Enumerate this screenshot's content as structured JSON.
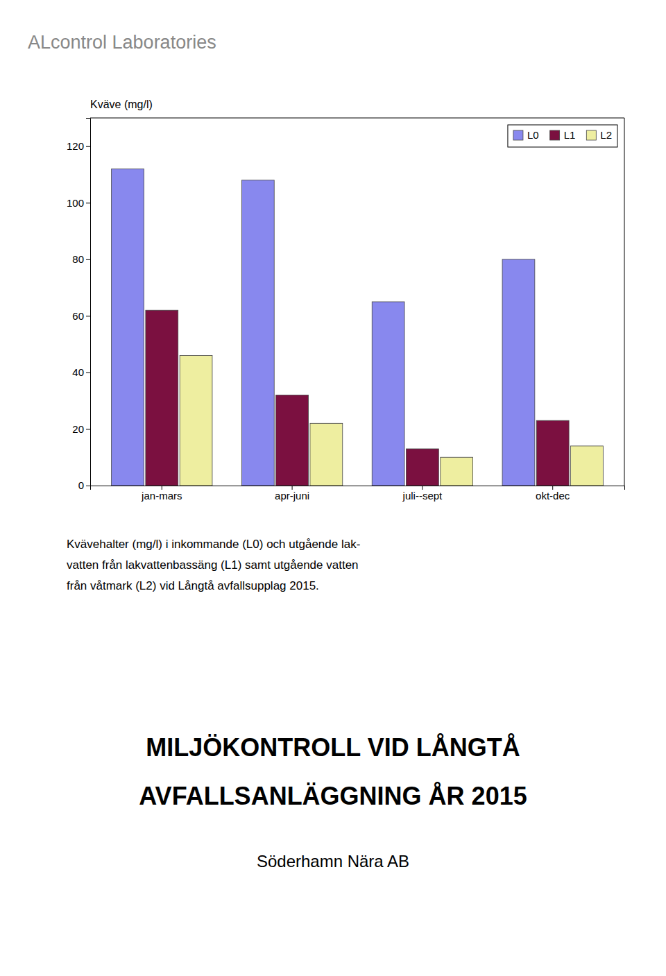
{
  "chart_data": {
    "type": "bar",
    "ylabel": "Kväve (mg/l)",
    "categories": [
      "jan-mars",
      "apr-juni",
      "juli--sept",
      "okt-dec"
    ],
    "series": [
      {
        "name": "L0",
        "color": "#8888EE",
        "values": [
          112,
          108,
          65,
          80
        ]
      },
      {
        "name": "L1",
        "color": "#7B1040",
        "values": [
          62,
          32,
          13,
          23
        ]
      },
      {
        "name": "L2",
        "color": "#EEEEA0",
        "values": [
          46,
          22,
          10,
          14
        ]
      }
    ],
    "ylim": [
      0,
      130
    ],
    "yticks": [
      0,
      20,
      40,
      60,
      80,
      100,
      120
    ],
    "grid": false,
    "legend": "upper right",
    "annotations": [
      "ALcontrol Laboratories",
      "Kvävehalter (mg/l) i inkommande (L0) och utgående lak-",
      "vatten från lakvattenbassäng (L1) samt utgående vatten",
      "från våtmark (L2) vid Långtå avfallsupplag 2015.",
      "MILJÖKONTROLL VID LÅNGTÅ",
      "AVFALLSANLÄGGNING ÅR 2015",
      "Söderhamn Nära AB"
    ]
  }
}
